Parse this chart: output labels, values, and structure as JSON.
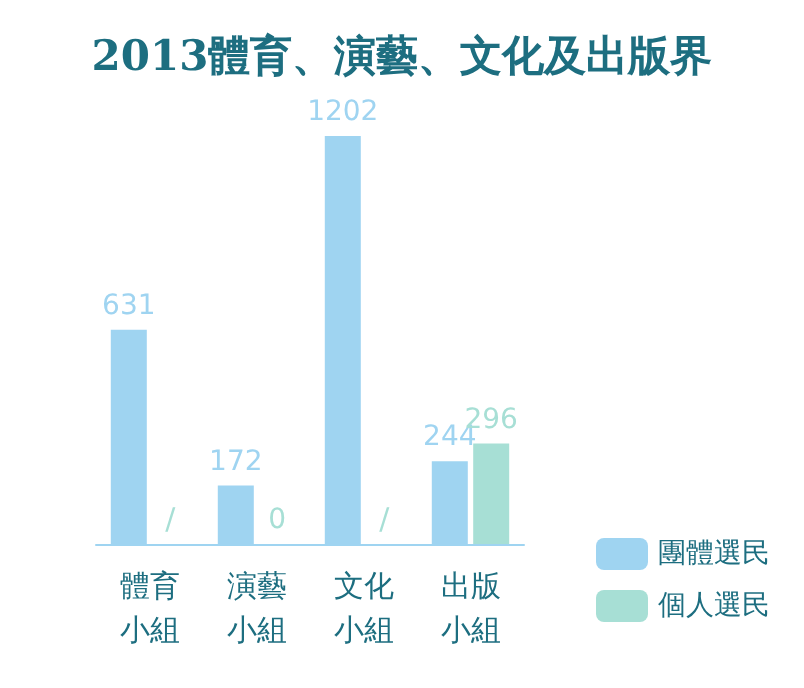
{
  "chart_data": {
    "type": "bar",
    "title": "2013體育、演藝、文化及出版界",
    "categories": [
      "體育小組",
      "演藝小組",
      "文化小組",
      "出版小組"
    ],
    "series": [
      {
        "name": "團體選民",
        "color": "#9fd4f1",
        "values": [
          631,
          172,
          1202,
          244
        ],
        "value_labels": [
          "631",
          "172",
          "1202",
          "244"
        ]
      },
      {
        "name": "個人選民",
        "color": "#a7dfd5",
        "values": [
          null,
          0,
          null,
          296
        ],
        "value_labels": [
          "/",
          "0",
          "/",
          "296"
        ]
      }
    ],
    "legend": "bottom right"
  }
}
